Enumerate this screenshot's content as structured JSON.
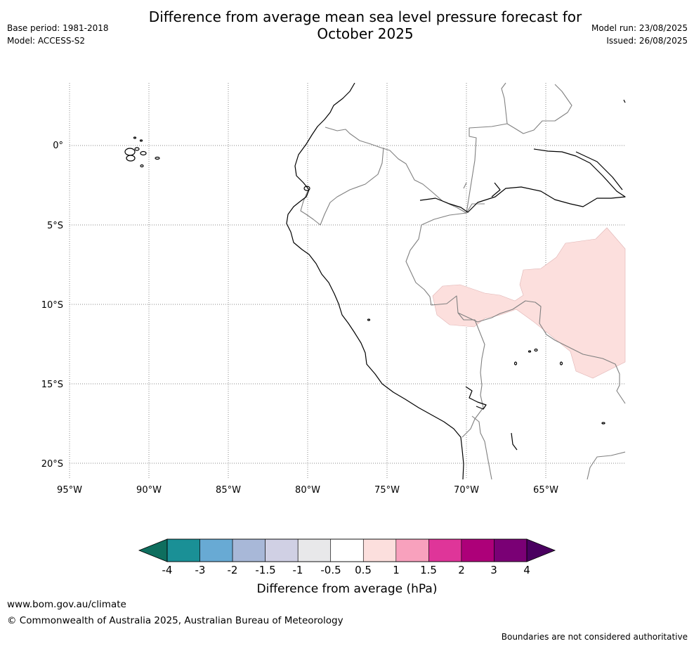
{
  "header": {
    "title_line1": "Difference from average mean sea level pressure forecast for",
    "title_line2": "October 2025",
    "base_period": "Base period: 1981-2018",
    "model": "Model: ACCESS-S2",
    "model_run": "Model run: 23/08/2025",
    "issued": "Issued: 26/08/2025"
  },
  "map": {
    "lon_labels": [
      "95°W",
      "90°W",
      "85°W",
      "80°W",
      "75°W",
      "70°W",
      "65°W"
    ],
    "lat_labels": [
      "0°",
      "5°S",
      "10°S",
      "15°S",
      "20°S"
    ],
    "anomaly_fill_color": "#fcdfdd",
    "coast_color": "#000000",
    "border_color": "#808080"
  },
  "colorbar": {
    "title": "Difference from average (hPa)",
    "tick_labels": [
      "-4",
      "-3",
      "-2",
      "-1.5",
      "-1",
      "-0.5",
      "0.5",
      "1",
      "1.5",
      "2",
      "3",
      "4"
    ],
    "under_color": "#0e6e5e",
    "over_color": "#4a0060",
    "colors": [
      "#1a9096",
      "#68aad4",
      "#a8b8d8",
      "#d0d0e4",
      "#e8e8ea",
      "#ffffff",
      "#fcdfdd",
      "#f8a1bd",
      "#df3599",
      "#ad0079",
      "#7a0075"
    ]
  },
  "footer": {
    "url": "www.bom.gov.au/climate",
    "copyright": "© Commonwealth of Australia 2025, Australian Bureau of Meteorology",
    "disclaimer": "Boundaries are not considered authoritative"
  }
}
